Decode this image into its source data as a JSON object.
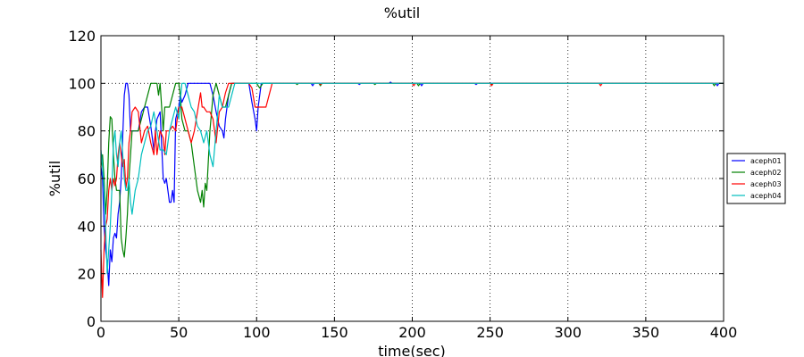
{
  "chart_data": {
    "type": "line",
    "title": "%util",
    "xlabel": "time(sec)",
    "ylabel": "%util",
    "xlim": [
      0,
      400
    ],
    "ylim": [
      0,
      120
    ],
    "xticks": [
      0,
      50,
      100,
      150,
      200,
      250,
      300,
      350,
      400
    ],
    "yticks": [
      0,
      20,
      40,
      60,
      80,
      100,
      120
    ],
    "grid": true,
    "legend_position": "right",
    "series": [
      {
        "name": "aceph01",
        "color": "#0000ff",
        "points": [
          [
            0,
            65
          ],
          [
            1,
            60
          ],
          [
            2,
            40
          ],
          [
            3,
            30
          ],
          [
            4,
            25
          ],
          [
            5,
            15
          ],
          [
            6,
            30
          ],
          [
            7,
            25
          ],
          [
            8,
            35
          ],
          [
            9,
            37
          ],
          [
            10,
            35
          ],
          [
            11,
            45
          ],
          [
            12,
            50
          ],
          [
            13,
            60
          ],
          [
            14,
            78
          ],
          [
            15,
            95
          ],
          [
            16,
            100
          ],
          [
            17,
            100
          ],
          [
            18,
            95
          ],
          [
            19,
            80
          ],
          [
            20,
            80
          ],
          [
            22,
            80
          ],
          [
            24,
            80
          ],
          [
            26,
            88
          ],
          [
            28,
            90
          ],
          [
            30,
            90
          ],
          [
            32,
            82
          ],
          [
            34,
            72
          ],
          [
            35,
            80
          ],
          [
            36,
            85
          ],
          [
            38,
            88
          ],
          [
            40,
            60
          ],
          [
            41,
            58
          ],
          [
            42,
            60
          ],
          [
            43,
            55
          ],
          [
            44,
            50
          ],
          [
            45,
            50
          ],
          [
            46,
            55
          ],
          [
            47,
            50
          ],
          [
            48,
            85
          ],
          [
            50,
            90
          ],
          [
            51,
            95
          ],
          [
            52,
            92
          ],
          [
            54,
            95
          ],
          [
            56,
            100
          ],
          [
            60,
            100
          ],
          [
            65,
            100
          ],
          [
            70,
            100
          ],
          [
            72,
            95
          ],
          [
            74,
            88
          ],
          [
            76,
            82
          ],
          [
            78,
            80
          ],
          [
            79,
            77
          ],
          [
            80,
            85
          ],
          [
            82,
            95
          ],
          [
            84,
            100
          ],
          [
            90,
            100
          ],
          [
            95,
            100
          ],
          [
            97,
            92
          ],
          [
            99,
            85
          ],
          [
            100,
            80
          ],
          [
            101,
            90
          ],
          [
            103,
            100
          ],
          [
            110,
            100
          ],
          [
            120,
            100
          ],
          [
            135,
            100
          ],
          [
            136,
            99
          ],
          [
            137,
            100
          ],
          [
            150,
            100
          ],
          [
            165,
            100
          ],
          [
            166,
            99.5
          ],
          [
            167,
            100
          ],
          [
            185,
            100
          ],
          [
            186,
            100.5
          ],
          [
            187,
            100
          ],
          [
            200,
            100
          ],
          [
            205,
            100
          ],
          [
            206,
            99
          ],
          [
            207,
            100
          ],
          [
            240,
            100
          ],
          [
            241,
            99.5
          ],
          [
            242,
            100
          ],
          [
            270,
            100
          ],
          [
            300,
            100
          ],
          [
            360,
            100
          ],
          [
            395,
            100
          ],
          [
            396,
            99
          ],
          [
            397,
            100
          ],
          [
            400,
            100
          ]
        ]
      },
      {
        "name": "aceph02",
        "color": "#008000",
        "points": [
          [
            0,
            65
          ],
          [
            1,
            70
          ],
          [
            2,
            60
          ],
          [
            3,
            45
          ],
          [
            4,
            55
          ],
          [
            5,
            75
          ],
          [
            6,
            86
          ],
          [
            7,
            85
          ],
          [
            8,
            70
          ],
          [
            9,
            60
          ],
          [
            10,
            55
          ],
          [
            11,
            55
          ],
          [
            12,
            55
          ],
          [
            13,
            35
          ],
          [
            14,
            30
          ],
          [
            15,
            27
          ],
          [
            16,
            35
          ],
          [
            17,
            45
          ],
          [
            18,
            60
          ],
          [
            19,
            70
          ],
          [
            20,
            80
          ],
          [
            22,
            80
          ],
          [
            24,
            80
          ],
          [
            26,
            85
          ],
          [
            28,
            90
          ],
          [
            30,
            95
          ],
          [
            32,
            100
          ],
          [
            34,
            100
          ],
          [
            36,
            100
          ],
          [
            37,
            95
          ],
          [
            38,
            100
          ],
          [
            40,
            80
          ],
          [
            41,
            90
          ],
          [
            42,
            90
          ],
          [
            44,
            90
          ],
          [
            46,
            95
          ],
          [
            48,
            100
          ],
          [
            50,
            100
          ],
          [
            51,
            95
          ],
          [
            52,
            85
          ],
          [
            54,
            80
          ],
          [
            56,
            80
          ],
          [
            58,
            75
          ],
          [
            60,
            65
          ],
          [
            62,
            55
          ],
          [
            64,
            50
          ],
          [
            65,
            55
          ],
          [
            66,
            48
          ],
          [
            67,
            58
          ],
          [
            68,
            55
          ],
          [
            70,
            80
          ],
          [
            72,
            95
          ],
          [
            74,
            100
          ],
          [
            76,
            95
          ],
          [
            78,
            90
          ],
          [
            80,
            90
          ],
          [
            82,
            95
          ],
          [
            84,
            100
          ],
          [
            90,
            100
          ],
          [
            95,
            100
          ],
          [
            100,
            100
          ],
          [
            102,
            98
          ],
          [
            104,
            100
          ],
          [
            110,
            100
          ],
          [
            125,
            100
          ],
          [
            126,
            99.5
          ],
          [
            127,
            100
          ],
          [
            140,
            100
          ],
          [
            141,
            99
          ],
          [
            142,
            100
          ],
          [
            160,
            100
          ],
          [
            175,
            100
          ],
          [
            176,
            99.5
          ],
          [
            177,
            100
          ],
          [
            200,
            100
          ],
          [
            203,
            100
          ],
          [
            204,
            99
          ],
          [
            205,
            100
          ],
          [
            250,
            100
          ],
          [
            251,
            99.5
          ],
          [
            252,
            100
          ],
          [
            290,
            100
          ],
          [
            320,
            100
          ],
          [
            360,
            100
          ],
          [
            393,
            100
          ],
          [
            394,
            99
          ],
          [
            395,
            100
          ],
          [
            400,
            100
          ]
        ]
      },
      {
        "name": "aceph03",
        "color": "#ff0000",
        "points": [
          [
            0,
            30
          ],
          [
            1,
            10
          ],
          [
            2,
            30
          ],
          [
            3,
            40
          ],
          [
            4,
            43
          ],
          [
            5,
            55
          ],
          [
            6,
            60
          ],
          [
            7,
            55
          ],
          [
            8,
            60
          ],
          [
            9,
            57
          ],
          [
            10,
            60
          ],
          [
            11,
            70
          ],
          [
            12,
            75
          ],
          [
            13,
            70
          ],
          [
            14,
            65
          ],
          [
            15,
            68
          ],
          [
            16,
            56
          ],
          [
            17,
            60
          ],
          [
            18,
            75
          ],
          [
            19,
            80
          ],
          [
            20,
            88
          ],
          [
            22,
            90
          ],
          [
            24,
            88
          ],
          [
            26,
            75
          ],
          [
            28,
            80
          ],
          [
            30,
            82
          ],
          [
            32,
            75
          ],
          [
            34,
            70
          ],
          [
            35,
            80
          ],
          [
            36,
            70
          ],
          [
            38,
            80
          ],
          [
            40,
            77
          ],
          [
            41,
            70
          ],
          [
            42,
            80
          ],
          [
            44,
            80
          ],
          [
            46,
            82
          ],
          [
            48,
            80
          ],
          [
            50,
            90
          ],
          [
            52,
            90
          ],
          [
            54,
            85
          ],
          [
            56,
            80
          ],
          [
            58,
            75
          ],
          [
            60,
            80
          ],
          [
            62,
            88
          ],
          [
            64,
            96
          ],
          [
            65,
            90
          ],
          [
            66,
            90
          ],
          [
            68,
            88
          ],
          [
            70,
            88
          ],
          [
            72,
            85
          ],
          [
            74,
            75
          ],
          [
            76,
            88
          ],
          [
            78,
            90
          ],
          [
            80,
            96
          ],
          [
            82,
            100
          ],
          [
            84,
            100
          ],
          [
            90,
            100
          ],
          [
            95,
            100
          ],
          [
            97,
            98
          ],
          [
            99,
            90
          ],
          [
            100,
            90
          ],
          [
            102,
            90
          ],
          [
            104,
            90
          ],
          [
            106,
            90
          ],
          [
            108,
            95
          ],
          [
            110,
            100
          ],
          [
            120,
            100
          ],
          [
            140,
            100
          ],
          [
            141,
            99.5
          ],
          [
            142,
            100
          ],
          [
            180,
            100
          ],
          [
            200,
            100
          ],
          [
            201,
            99
          ],
          [
            202,
            100
          ],
          [
            230,
            100
          ],
          [
            250,
            100
          ],
          [
            251,
            99
          ],
          [
            252,
            100
          ],
          [
            280,
            100
          ],
          [
            320,
            100
          ],
          [
            321,
            99
          ],
          [
            322,
            100
          ],
          [
            360,
            100
          ],
          [
            400,
            100
          ]
        ]
      },
      {
        "name": "aceph04",
        "color": "#00bfbf",
        "points": [
          [
            0,
            72
          ],
          [
            1,
            65
          ],
          [
            2,
            55
          ],
          [
            3,
            40
          ],
          [
            4,
            20
          ],
          [
            5,
            30
          ],
          [
            6,
            40
          ],
          [
            7,
            55
          ],
          [
            8,
            75
          ],
          [
            9,
            80
          ],
          [
            10,
            70
          ],
          [
            11,
            65
          ],
          [
            12,
            75
          ],
          [
            13,
            80
          ],
          [
            14,
            70
          ],
          [
            15,
            60
          ],
          [
            16,
            55
          ],
          [
            17,
            55
          ],
          [
            18,
            60
          ],
          [
            19,
            50
          ],
          [
            20,
            45
          ],
          [
            21,
            50
          ],
          [
            22,
            55
          ],
          [
            24,
            60
          ],
          [
            26,
            70
          ],
          [
            28,
            75
          ],
          [
            30,
            80
          ],
          [
            32,
            82
          ],
          [
            34,
            88
          ],
          [
            36,
            80
          ],
          [
            38,
            72
          ],
          [
            40,
            72
          ],
          [
            42,
            70
          ],
          [
            44,
            80
          ],
          [
            46,
            85
          ],
          [
            48,
            90
          ],
          [
            50,
            85
          ],
          [
            52,
            100
          ],
          [
            54,
            100
          ],
          [
            56,
            95
          ],
          [
            58,
            90
          ],
          [
            60,
            88
          ],
          [
            62,
            82
          ],
          [
            64,
            80
          ],
          [
            66,
            75
          ],
          [
            68,
            80
          ],
          [
            70,
            70
          ],
          [
            72,
            65
          ],
          [
            74,
            80
          ],
          [
            76,
            95
          ],
          [
            78,
            90
          ],
          [
            80,
            90
          ],
          [
            82,
            90
          ],
          [
            84,
            95
          ],
          [
            86,
            100
          ],
          [
            90,
            100
          ],
          [
            100,
            100
          ],
          [
            110,
            100
          ],
          [
            120,
            100
          ],
          [
            130,
            100
          ],
          [
            160,
            100
          ],
          [
            200,
            100
          ],
          [
            250,
            100
          ],
          [
            300,
            100
          ],
          [
            350,
            100
          ],
          [
            400,
            100
          ]
        ]
      }
    ]
  }
}
